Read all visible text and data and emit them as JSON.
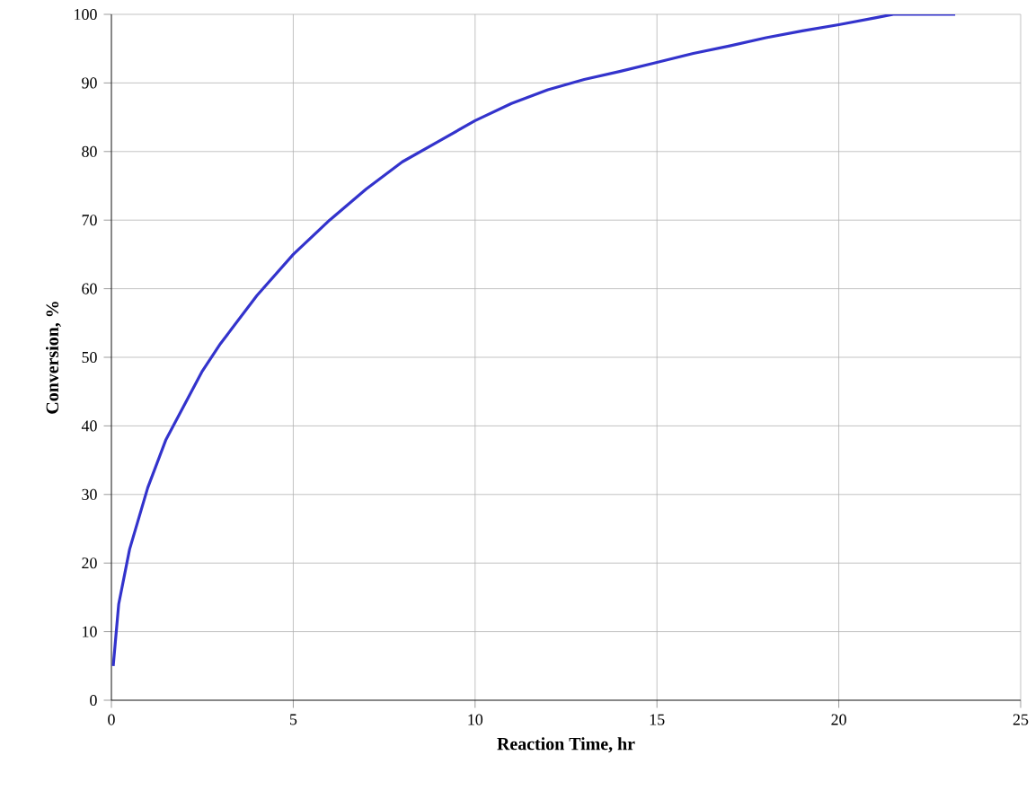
{
  "chart_data": {
    "type": "line",
    "xlabel": "Reaction Time, hr",
    "ylabel": "Conversion, %",
    "x": [
      0.05,
      0.2,
      0.5,
      1,
      1.5,
      2,
      2.5,
      3,
      4,
      5,
      6,
      7,
      8,
      9,
      10,
      11,
      12,
      13,
      14,
      15,
      16,
      17,
      18,
      19,
      20,
      21,
      21.5,
      23.2
    ],
    "series": [
      {
        "color": "#3333cc",
        "values": [
          5,
          14,
          22,
          31,
          38,
          43,
          48,
          52,
          59,
          65,
          70,
          74.5,
          78.5,
          81.5,
          84.5,
          87,
          89,
          90.5,
          91.7,
          93,
          94.3,
          95.4,
          96.6,
          97.6,
          98.5,
          99.5,
          100,
          100
        ]
      }
    ],
    "xlim": [
      0,
      25
    ],
    "xticks": [
      0,
      5,
      10,
      15,
      20,
      25
    ],
    "ylim": [
      0,
      100
    ],
    "yticks": [
      0,
      10,
      20,
      30,
      40,
      50,
      60,
      70,
      80,
      90,
      100
    ],
    "grid": true,
    "marker": "none",
    "line_style": "solid"
  }
}
